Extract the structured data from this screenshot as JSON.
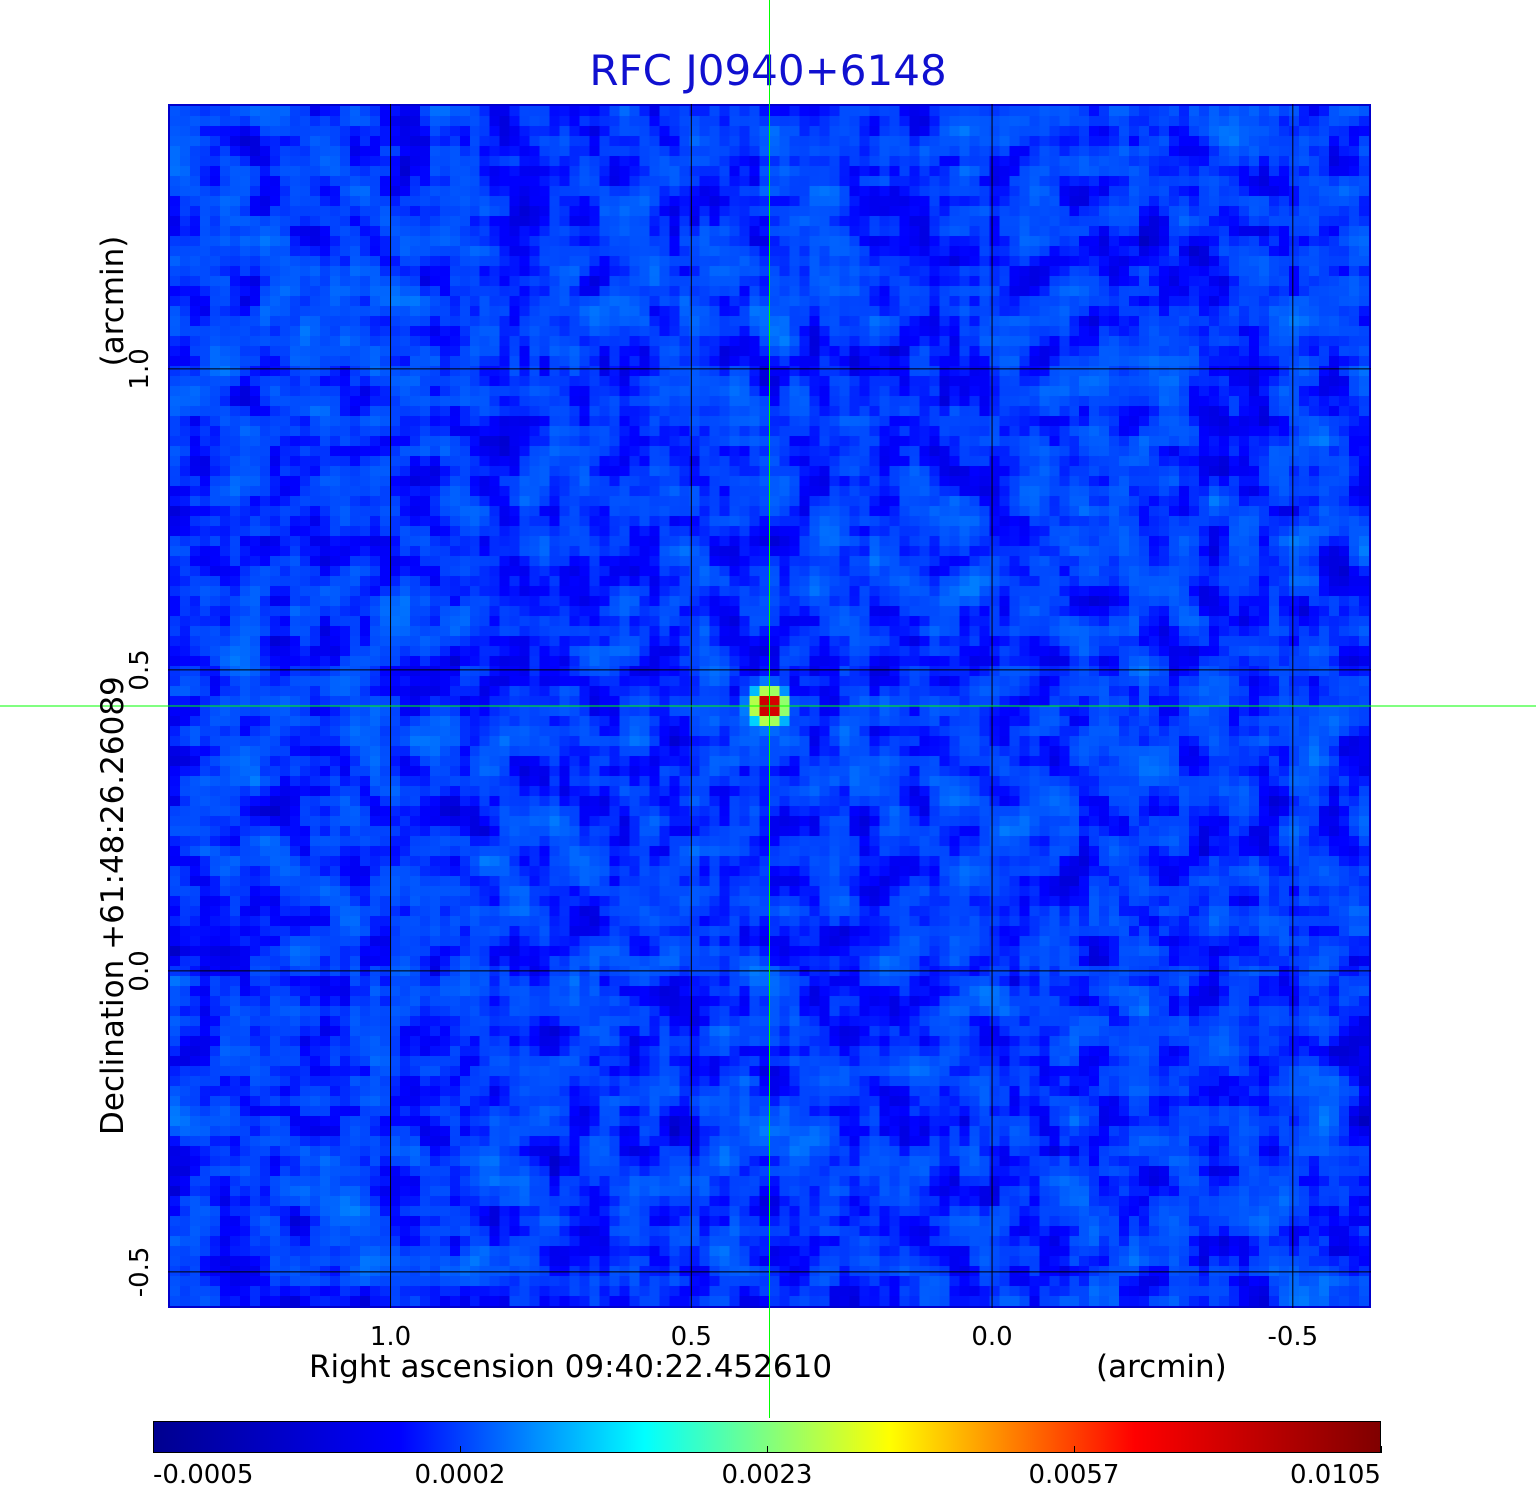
{
  "chart_data": {
    "type": "heatmap",
    "title": "RFC J0940+6148",
    "xlabel": "Right ascension  09:40:22.452610",
    "xunit": "(arcmin)",
    "ylabel": "Declination  +61:48:26.26089",
    "yunit": "(arcmin)",
    "xlim": [
      1.37,
      -0.63
    ],
    "ylim": [
      -0.56,
      1.44
    ],
    "x_ticks": [
      1.0,
      0.5,
      0.0,
      -0.5
    ],
    "x_tick_labels": [
      "1.0",
      "0.5",
      "0.0",
      "-0.5"
    ],
    "y_ticks": [
      1.0,
      0.5,
      0.0,
      -0.5
    ],
    "y_tick_labels": [
      "1.0",
      "0.5",
      "0.0",
      "-0.5"
    ],
    "grid": true,
    "grid_color": "#000000",
    "crosshair": {
      "x": 0.37,
      "y": 0.44,
      "color": "#00ff00"
    },
    "source": {
      "x": 0.37,
      "y": 0.44,
      "peak": 0.0105
    },
    "background_level": 0.0002,
    "colormap": "jet",
    "colorbar": {
      "ticks": [
        -0.0005,
        0.0002,
        0.0023,
        0.0057,
        0.0105
      ],
      "tick_labels": [
        "-0.0005",
        "0.0002",
        "0.0023",
        "0.0057",
        "0.0105"
      ],
      "stops": [
        "#00008f",
        "#0000ff",
        "#00ffff",
        "#ffff00",
        "#ff0000",
        "#800000"
      ]
    }
  }
}
